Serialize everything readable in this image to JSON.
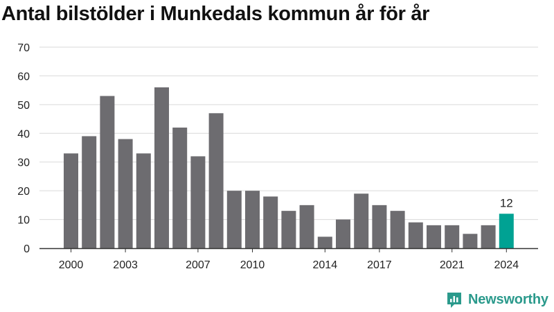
{
  "title": "Antal bilstölder i Munkedals kommun år för år",
  "brand": {
    "name": "Newsworthy",
    "icon": "newsworthy-logo-icon",
    "color": "#2b9a8c"
  },
  "colors": {
    "bar": "#6d6c70",
    "highlight": "#00a293",
    "grid": "#d9d9d9",
    "axis": "#333333"
  },
  "chart_data": {
    "type": "bar",
    "title": "Antal bilstölder i Munkedals kommun år för år",
    "xlabel": "",
    "ylabel": "",
    "categories": [
      "2000",
      "2001",
      "2002",
      "2003",
      "2004",
      "2005",
      "2006",
      "2007",
      "2008",
      "2009",
      "2010",
      "2011",
      "2012",
      "2013",
      "2014",
      "2015",
      "2016",
      "2017",
      "2018",
      "2019",
      "2020",
      "2021",
      "2022",
      "2023",
      "2024"
    ],
    "values": [
      33,
      39,
      53,
      38,
      33,
      56,
      42,
      32,
      47,
      20,
      20,
      18,
      13,
      15,
      4,
      10,
      19,
      15,
      13,
      9,
      8,
      8,
      5,
      8,
      12
    ],
    "x_tick_labels": [
      "2000",
      "2003",
      "2007",
      "2010",
      "2014",
      "2017",
      "2021",
      "2024"
    ],
    "y_ticks": [
      0,
      10,
      20,
      30,
      40,
      50,
      60,
      70
    ],
    "ylim": [
      0,
      70
    ],
    "grid": true,
    "highlight": {
      "category": "2024",
      "label": "12"
    }
  }
}
